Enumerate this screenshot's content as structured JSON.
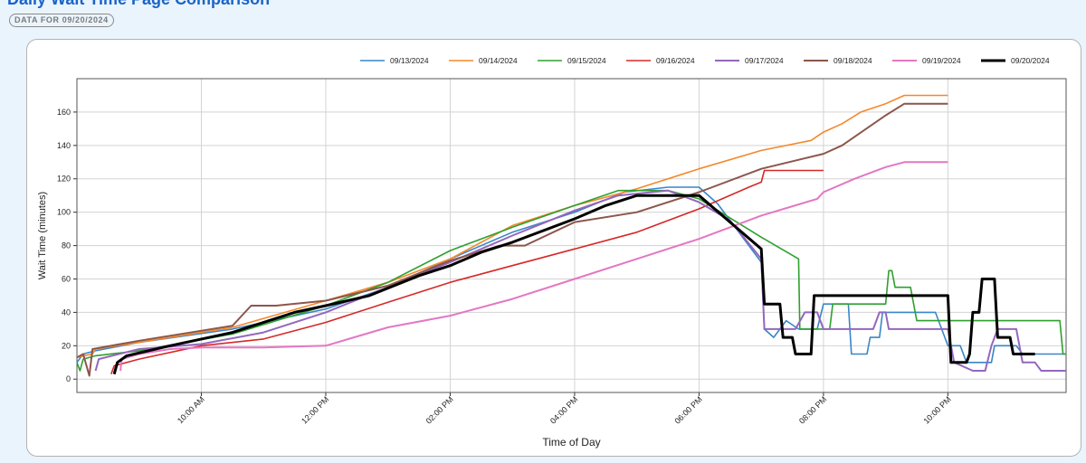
{
  "page": {
    "heading": "Daily Wait Time Page Comparison",
    "date_badge": "DATA FOR 09/20/2024"
  },
  "colors": {
    "background": "#eaf4fc",
    "heading": "#1a64c8",
    "card_border": "#b3b3b3",
    "grid": "#d3d3d3"
  },
  "chart_data": {
    "type": "line",
    "xlabel": "Time of Day",
    "ylabel": "Wait Time (minutes)",
    "x_tick_labels": [
      "10:00 AM",
      "12:00 PM",
      "02:00 PM",
      "04:00 PM",
      "06:00 PM",
      "08:00 PM",
      "10:00 PM"
    ],
    "x_ticks_hours": [
      10,
      12,
      14,
      16,
      18,
      20,
      22
    ],
    "xlim_hours": [
      8.0,
      23.9
    ],
    "y_ticks": [
      0,
      20,
      40,
      60,
      80,
      100,
      120,
      140,
      160
    ],
    "ylim": [
      -8,
      180
    ],
    "grid": true,
    "legend_position": "top-right",
    "series": [
      {
        "name": "09/13/2024",
        "color": "#3a86c8",
        "width": 1.6,
        "points": [
          [
            8.0,
            10
          ],
          [
            8.1,
            15
          ],
          [
            8.2,
            16
          ],
          [
            8.3,
            17
          ],
          [
            9.0,
            22
          ],
          [
            10.5,
            30
          ],
          [
            12.0,
            42
          ],
          [
            13.0,
            55
          ],
          [
            14.0,
            72
          ],
          [
            15.0,
            88
          ],
          [
            16.0,
            100
          ],
          [
            16.8,
            112
          ],
          [
            17.5,
            115
          ],
          [
            18.0,
            115
          ],
          [
            18.3,
            105
          ],
          [
            19.0,
            70
          ],
          [
            19.05,
            30
          ],
          [
            19.2,
            25
          ],
          [
            19.4,
            35
          ],
          [
            19.6,
            30
          ],
          [
            19.9,
            30
          ],
          [
            20.0,
            45
          ],
          [
            20.4,
            45
          ],
          [
            20.45,
            15
          ],
          [
            20.7,
            15
          ],
          [
            20.75,
            25
          ],
          [
            20.9,
            25
          ],
          [
            20.95,
            40
          ],
          [
            21.8,
            40
          ],
          [
            21.85,
            35
          ],
          [
            22.0,
            20
          ],
          [
            22.2,
            20
          ],
          [
            22.3,
            10
          ],
          [
            22.7,
            10
          ],
          [
            22.75,
            20
          ],
          [
            23.1,
            20
          ],
          [
            23.2,
            15
          ],
          [
            23.9,
            15
          ]
        ]
      },
      {
        "name": "09/14/2024",
        "color": "#f5882a",
        "width": 1.6,
        "points": [
          [
            8.0,
            13
          ],
          [
            8.25,
            15
          ],
          [
            8.3,
            18
          ],
          [
            9.0,
            22
          ],
          [
            10.5,
            31
          ],
          [
            12.0,
            47
          ],
          [
            13.0,
            58
          ],
          [
            14.0,
            72
          ],
          [
            15.0,
            92
          ],
          [
            16.0,
            104
          ],
          [
            17.0,
            114
          ],
          [
            18.0,
            126
          ],
          [
            19.0,
            137
          ],
          [
            19.8,
            143
          ],
          [
            20.0,
            148
          ],
          [
            20.3,
            153
          ],
          [
            20.6,
            160
          ],
          [
            21.0,
            165
          ],
          [
            21.3,
            170
          ],
          [
            22.0,
            170
          ]
        ]
      },
      {
        "name": "09/15/2024",
        "color": "#2ea02e",
        "width": 1.6,
        "points": [
          [
            8.0,
            10
          ],
          [
            8.05,
            5
          ],
          [
            8.1,
            12
          ],
          [
            8.3,
            14
          ],
          [
            9.0,
            17
          ],
          [
            10.5,
            27
          ],
          [
            12.0,
            44
          ],
          [
            13.0,
            58
          ],
          [
            14.0,
            77
          ],
          [
            15.0,
            91
          ],
          [
            16.0,
            104
          ],
          [
            16.7,
            113
          ],
          [
            17.5,
            113
          ],
          [
            18.0,
            108
          ],
          [
            19.0,
            85
          ],
          [
            19.6,
            72
          ],
          [
            19.62,
            30
          ],
          [
            19.7,
            30
          ],
          [
            20.0,
            30
          ],
          [
            20.1,
            30
          ],
          [
            20.15,
            45
          ],
          [
            21.0,
            45
          ],
          [
            21.05,
            65
          ],
          [
            21.1,
            65
          ],
          [
            21.15,
            55
          ],
          [
            21.4,
            55
          ],
          [
            21.5,
            35
          ],
          [
            22.0,
            35
          ],
          [
            23.8,
            35
          ],
          [
            23.85,
            15
          ],
          [
            23.9,
            15
          ]
        ]
      },
      {
        "name": "09/16/2024",
        "color": "#d62828",
        "width": 1.6,
        "points": [
          [
            8.55,
            3
          ],
          [
            8.6,
            8
          ],
          [
            9.0,
            12
          ],
          [
            10.0,
            20
          ],
          [
            11.0,
            24
          ],
          [
            12.0,
            34
          ],
          [
            13.0,
            46
          ],
          [
            14.0,
            58
          ],
          [
            15.0,
            68
          ],
          [
            16.0,
            78
          ],
          [
            17.0,
            88
          ],
          [
            18.0,
            102
          ],
          [
            18.8,
            115
          ],
          [
            19.0,
            118
          ],
          [
            19.05,
            125
          ],
          [
            20.0,
            125
          ]
        ]
      },
      {
        "name": "09/17/2024",
        "color": "#9467bd",
        "width": 2.0,
        "points": [
          [
            8.3,
            5
          ],
          [
            8.35,
            12
          ],
          [
            9.0,
            18
          ],
          [
            10.0,
            21
          ],
          [
            11.0,
            28
          ],
          [
            12.0,
            40
          ],
          [
            13.0,
            55
          ],
          [
            14.0,
            70
          ],
          [
            15.0,
            86
          ],
          [
            16.0,
            101
          ],
          [
            16.7,
            110
          ],
          [
            17.5,
            113
          ],
          [
            18.0,
            106
          ],
          [
            18.5,
            95
          ],
          [
            19.0,
            72
          ],
          [
            19.05,
            30
          ],
          [
            19.5,
            30
          ],
          [
            19.55,
            30
          ],
          [
            19.7,
            40
          ],
          [
            19.9,
            40
          ],
          [
            20.0,
            30
          ],
          [
            20.7,
            30
          ],
          [
            20.8,
            30
          ],
          [
            20.9,
            40
          ],
          [
            21.0,
            40
          ],
          [
            21.05,
            30
          ],
          [
            22.0,
            30
          ],
          [
            22.1,
            10
          ],
          [
            22.4,
            5
          ],
          [
            22.6,
            5
          ],
          [
            22.7,
            20
          ],
          [
            22.8,
            30
          ],
          [
            23.1,
            30
          ],
          [
            23.2,
            10
          ],
          [
            23.4,
            10
          ],
          [
            23.5,
            5
          ],
          [
            23.9,
            5
          ]
        ]
      },
      {
        "name": "09/18/2024",
        "color": "#8c564b",
        "width": 2.0,
        "points": [
          [
            8.0,
            13
          ],
          [
            8.1,
            15
          ],
          [
            8.2,
            2
          ],
          [
            8.25,
            18
          ],
          [
            9.0,
            23
          ],
          [
            10.5,
            32
          ],
          [
            10.8,
            44
          ],
          [
            11.2,
            44
          ],
          [
            12.0,
            47
          ],
          [
            13.0,
            56
          ],
          [
            14.0,
            71
          ],
          [
            14.8,
            80
          ],
          [
            15.2,
            80
          ],
          [
            16.0,
            94
          ],
          [
            17.0,
            100
          ],
          [
            18.0,
            112
          ],
          [
            19.0,
            126
          ],
          [
            20.0,
            135
          ],
          [
            20.3,
            140
          ],
          [
            21.0,
            158
          ],
          [
            21.3,
            165
          ],
          [
            22.0,
            165
          ]
        ]
      },
      {
        "name": "09/19/2024",
        "color": "#e377c2",
        "width": 2.0,
        "points": [
          [
            8.7,
            5
          ],
          [
            8.72,
            12
          ],
          [
            9.0,
            15
          ],
          [
            9.5,
            18
          ],
          [
            10.0,
            19
          ],
          [
            11.0,
            19
          ],
          [
            12.0,
            20
          ],
          [
            13.0,
            31
          ],
          [
            14.0,
            38
          ],
          [
            15.0,
            48
          ],
          [
            16.0,
            60
          ],
          [
            17.0,
            72
          ],
          [
            18.0,
            84
          ],
          [
            19.0,
            98
          ],
          [
            19.9,
            108
          ],
          [
            20.0,
            112
          ],
          [
            20.5,
            120
          ],
          [
            21.0,
            127
          ],
          [
            21.3,
            130
          ],
          [
            22.0,
            130
          ]
        ]
      },
      {
        "name": "09/20/2024",
        "color": "#000000",
        "width": 3.0,
        "points": [
          [
            8.6,
            3
          ],
          [
            8.65,
            10
          ],
          [
            8.8,
            14
          ],
          [
            9.5,
            20
          ],
          [
            10.5,
            28
          ],
          [
            11.5,
            40
          ],
          [
            12.0,
            44
          ],
          [
            12.7,
            50
          ],
          [
            13.5,
            62
          ],
          [
            14.0,
            68
          ],
          [
            14.5,
            76
          ],
          [
            15.0,
            82
          ],
          [
            16.0,
            96
          ],
          [
            16.5,
            104
          ],
          [
            17.0,
            110
          ],
          [
            17.5,
            110
          ],
          [
            18.0,
            110
          ],
          [
            19.0,
            78
          ],
          [
            19.05,
            45
          ],
          [
            19.3,
            45
          ],
          [
            19.35,
            25
          ],
          [
            19.5,
            25
          ],
          [
            19.55,
            15
          ],
          [
            19.8,
            15
          ],
          [
            19.85,
            50
          ],
          [
            22.0,
            50
          ],
          [
            22.05,
            10
          ],
          [
            22.3,
            10
          ],
          [
            22.35,
            15
          ],
          [
            22.4,
            40
          ],
          [
            22.5,
            40
          ],
          [
            22.55,
            60
          ],
          [
            22.75,
            60
          ],
          [
            22.8,
            25
          ],
          [
            23.0,
            25
          ],
          [
            23.05,
            15
          ],
          [
            23.4,
            15
          ]
        ]
      }
    ]
  }
}
